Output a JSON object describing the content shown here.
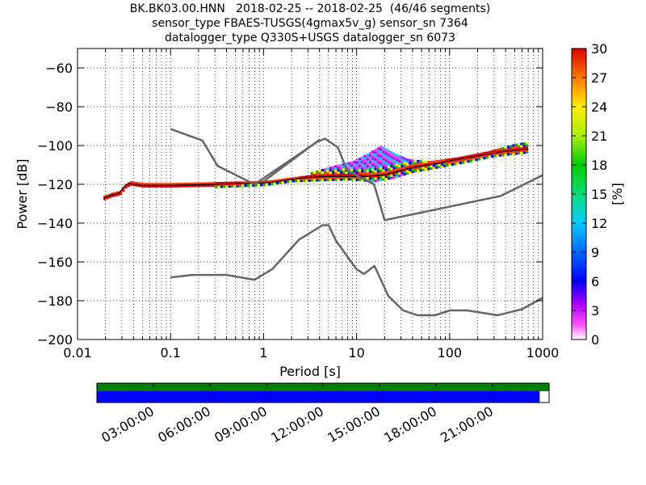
{
  "chart_data": [
    {
      "type": "heatmap",
      "title_lines": [
        "BK.BK03.00.HNN   2018-02-25 -- 2018-02-25  (46/46 segments)",
        "sensor_type FBAES-TUSGS(4gmax5v_g) sensor_sn 7364",
        "datalogger_type Q330S+USGS datalogger_sn 6073"
      ],
      "xlabel": "Period [s]",
      "ylabel": "Power [dB]",
      "xscale": "log",
      "xlim": [
        0.01,
        1000
      ],
      "ylim": [
        -200,
        -50
      ],
      "x_tick_labels": [
        "0.01",
        "0.1",
        "1",
        "10",
        "100",
        "1000"
      ],
      "x_tick_values": [
        0.01,
        0.1,
        1,
        10,
        100,
        1000
      ],
      "y_tick_labels": [
        "−200",
        "−180",
        "−160",
        "−140",
        "−120",
        "−100",
        "−80",
        "−60"
      ],
      "y_tick_values": [
        -200,
        -180,
        -160,
        -140,
        -120,
        -100,
        -80,
        -60
      ],
      "grid": true,
      "colorbar": {
        "label": "[%]",
        "range": [
          0,
          30
        ],
        "tick_labels": [
          "0",
          "3",
          "6",
          "9",
          "12",
          "15",
          "18",
          "21",
          "24",
          "27",
          "30"
        ],
        "tick_values": [
          0,
          3,
          6,
          9,
          12,
          15,
          18,
          21,
          24,
          27,
          30
        ]
      },
      "noise_models": [
        {
          "name": "high",
          "points": [
            [
              0.1,
              -91.5
            ],
            [
              0.22,
              -97.4
            ],
            [
              0.32,
              -110.5
            ],
            [
              0.8,
              -120
            ],
            [
              3.8,
              -98
            ],
            [
              4.6,
              -96.5
            ],
            [
              6.3,
              -101
            ],
            [
              7.9,
              -113
            ],
            [
              15.4,
              -120
            ],
            [
              20,
              -138.5
            ],
            [
              354.8,
              -126
            ],
            [
              10000,
              -91.5
            ]
          ]
        },
        {
          "name": "low",
          "points": [
            [
              0.1,
              -168
            ],
            [
              0.17,
              -166.7
            ],
            [
              0.4,
              -166.7
            ],
            [
              0.8,
              -169.2
            ],
            [
              1.24,
              -163.7
            ],
            [
              2.4,
              -148.6
            ],
            [
              4.3,
              -141.1
            ],
            [
              5,
              -141.1
            ],
            [
              6,
              -149
            ],
            [
              10,
              -163.8
            ],
            [
              12,
              -166.2
            ],
            [
              15.6,
              -162.1
            ],
            [
              21.9,
              -177.5
            ],
            [
              31.6,
              -185
            ],
            [
              45,
              -187.5
            ],
            [
              70,
              -187.5
            ],
            [
              101,
              -185
            ],
            [
              154,
              -185
            ],
            [
              328,
              -187.5
            ],
            [
              600,
              -184.4
            ],
            [
              10000,
              -151.9
            ]
          ]
        },
        {
          "name": "high-segment",
          "points": [
            [
              1,
              -118.5
            ],
            [
              4,
              -97
            ]
          ]
        }
      ],
      "psd_paths": [
        {
          "label": "main",
          "points": [
            [
              0.019,
              -127
            ],
            [
              0.023,
              -125.5
            ],
            [
              0.028,
              -124.5
            ],
            [
              0.032,
              -121
            ],
            [
              0.036,
              -119.5
            ],
            [
              0.042,
              -120
            ],
            [
              0.05,
              -120.5
            ],
            [
              0.1,
              -120.5
            ],
            [
              0.3,
              -120
            ],
            [
              0.8,
              -119.5
            ],
            [
              1.2,
              -119
            ],
            [
              2,
              -117.5
            ],
            [
              3,
              -116.5
            ],
            [
              5,
              -116
            ],
            [
              8,
              -116
            ],
            [
              12,
              -116
            ],
            [
              20,
              -115
            ],
            [
              35,
              -112
            ],
            [
              60,
              -110
            ],
            [
              100,
              -108
            ],
            [
              200,
              -105.5
            ],
            [
              400,
              -103
            ],
            [
              700,
              -102
            ]
          ]
        },
        {
          "label": "upper",
          "points": [
            [
              3,
              -114
            ],
            [
              6,
              -110
            ],
            [
              9,
              -108
            ],
            [
              14,
              -103
            ],
            [
              18,
              -100
            ],
            [
              25,
              -104
            ],
            [
              35,
              -107
            ],
            [
              60,
              -108
            ],
            [
              120,
              -106
            ],
            [
              250,
              -103
            ],
            [
              500,
              -99
            ],
            [
              700,
              -98
            ]
          ]
        },
        {
          "label": "lower",
          "points": [
            [
              0.3,
              -122
            ],
            [
              1,
              -121
            ],
            [
              2,
              -119
            ],
            [
              4,
              -118.5
            ],
            [
              8,
              -118
            ],
            [
              15,
              -119
            ],
            [
              25,
              -117
            ],
            [
              40,
              -114
            ],
            [
              70,
              -112
            ],
            [
              150,
              -109
            ],
            [
              300,
              -106
            ],
            [
              700,
              -104
            ]
          ]
        }
      ]
    },
    {
      "type": "timeline",
      "tick_labels": [
        "03:00:00",
        "06:00:00",
        "09:00:00",
        "12:00:00",
        "15:00:00",
        "18:00:00",
        "21:00:00"
      ],
      "tick_hours": [
        3,
        6,
        9,
        12,
        15,
        18,
        21
      ],
      "range_hours": [
        0,
        24
      ],
      "data_coverage": [
        0,
        23.5
      ],
      "colors": {
        "segment_top": "#008000",
        "segment_bottom": "#0000ff"
      }
    }
  ]
}
